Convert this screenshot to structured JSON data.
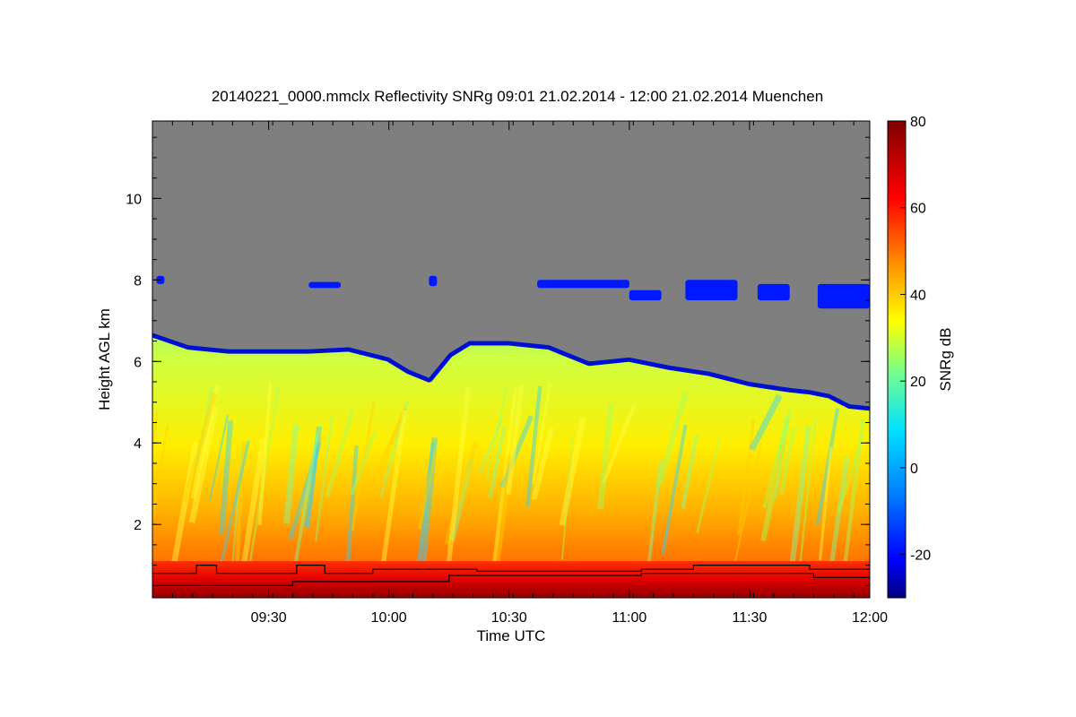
{
  "chart_data": {
    "type": "heatmap",
    "title": "20140221_0000.mmclx Reflectivity SNRg   09:01 21.02.2014 - 12:00 21.02.2014 Muenchen",
    "xlabel": "Time UTC",
    "ylabel": "Height AGL km",
    "colorbar_label": "SNRg dB",
    "x_range_min": [
      541,
      720
    ],
    "y_range_km": [
      0.2,
      11.9
    ],
    "colorbar_range_db": [
      -30,
      80
    ],
    "x_ticks": [
      {
        "min": 570,
        "label": "09:30"
      },
      {
        "min": 600,
        "label": "10:00"
      },
      {
        "min": 630,
        "label": "10:30"
      },
      {
        "min": 660,
        "label": "11:00"
      },
      {
        "min": 690,
        "label": "11:30"
      },
      {
        "min": 720,
        "label": "12:00"
      }
    ],
    "y_ticks": [
      {
        "km": 2,
        "label": "2"
      },
      {
        "km": 4,
        "label": "4"
      },
      {
        "km": 6,
        "label": "6"
      },
      {
        "km": 8,
        "label": "8"
      },
      {
        "km": 10,
        "label": "10"
      }
    ],
    "colorbar_ticks": [
      {
        "db": -20,
        "label": "-20"
      },
      {
        "db": 0,
        "label": "0"
      },
      {
        "db": 20,
        "label": "20"
      },
      {
        "db": 40,
        "label": "40"
      },
      {
        "db": 60,
        "label": "60"
      },
      {
        "db": 80,
        "label": "80"
      }
    ],
    "cloud_top_km": [
      [
        541,
        6.7
      ],
      [
        550,
        6.4
      ],
      [
        560,
        6.3
      ],
      [
        570,
        6.3
      ],
      [
        580,
        6.3
      ],
      [
        590,
        6.35
      ],
      [
        600,
        6.1
      ],
      [
        605,
        5.8
      ],
      [
        610,
        5.6
      ],
      [
        615,
        6.2
      ],
      [
        620,
        6.5
      ],
      [
        630,
        6.5
      ],
      [
        640,
        6.4
      ],
      [
        650,
        6.0
      ],
      [
        660,
        6.1
      ],
      [
        670,
        5.9
      ],
      [
        680,
        5.75
      ],
      [
        690,
        5.5
      ],
      [
        700,
        5.35
      ],
      [
        705,
        5.3
      ],
      [
        710,
        5.2
      ],
      [
        715,
        4.95
      ],
      [
        720,
        4.9
      ]
    ],
    "cirrus_patches": [
      {
        "t0": 542,
        "t1": 544,
        "h0": 7.9,
        "h1": 8.1
      },
      {
        "t0": 580,
        "t1": 588,
        "h0": 7.8,
        "h1": 7.95
      },
      {
        "t0": 610,
        "t1": 612,
        "h0": 7.85,
        "h1": 8.1
      },
      {
        "t0": 637,
        "t1": 660,
        "h0": 7.8,
        "h1": 8.0
      },
      {
        "t0": 660,
        "t1": 668,
        "h0": 7.5,
        "h1": 7.75
      },
      {
        "t0": 674,
        "t1": 687,
        "h0": 7.5,
        "h1": 8.0
      },
      {
        "t0": 692,
        "t1": 700,
        "h0": 7.5,
        "h1": 7.9
      },
      {
        "t0": 707,
        "t1": 720,
        "h0": 7.3,
        "h1": 7.9
      }
    ],
    "line_upper_km": [
      [
        541,
        0.8
      ],
      [
        552,
        0.8
      ],
      [
        552,
        1.0
      ],
      [
        557,
        1.0
      ],
      [
        557,
        0.8
      ],
      [
        577,
        0.8
      ],
      [
        577,
        1.0
      ],
      [
        584,
        1.0
      ],
      [
        584,
        0.8
      ],
      [
        596,
        0.8
      ],
      [
        596,
        0.9
      ],
      [
        622,
        0.9
      ],
      [
        622,
        0.85
      ],
      [
        663,
        0.85
      ],
      [
        663,
        0.9
      ],
      [
        676,
        0.9
      ],
      [
        676,
        1.0
      ],
      [
        705,
        1.0
      ],
      [
        705,
        0.9
      ],
      [
        720,
        0.9
      ]
    ],
    "line_lower_km": [
      [
        541,
        0.5
      ],
      [
        576,
        0.5
      ],
      [
        576,
        0.6
      ],
      [
        615,
        0.6
      ],
      [
        615,
        0.75
      ],
      [
        663,
        0.75
      ],
      [
        663,
        0.8
      ],
      [
        706,
        0.8
      ],
      [
        706,
        0.7
      ],
      [
        720,
        0.7
      ]
    ]
  }
}
